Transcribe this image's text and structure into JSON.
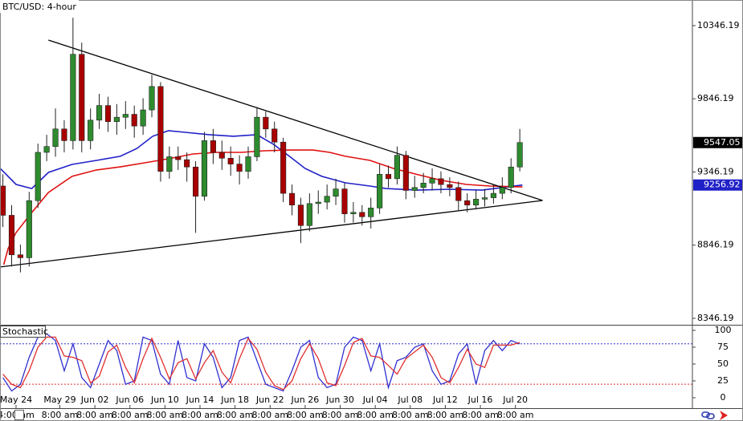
{
  "chart_data": [
    {
      "type": "candlestick",
      "title": "BTC/USD: 4-hour",
      "x": [
        -1.5,
        -0.5,
        0.5,
        1.5,
        2.5,
        3.5,
        4.5,
        5.5,
        6.5,
        7.5,
        8.5,
        9.5,
        10.5,
        11.5,
        12.5,
        13.5,
        14.5,
        15.5,
        16.5,
        17.5,
        18.5,
        19.5,
        20.5,
        21.5,
        22.5,
        23.5,
        24.5,
        25.5,
        26.5,
        27.5,
        28.5,
        29.5,
        30.5,
        31.5,
        32.5,
        33.5,
        34.5,
        35.5,
        36.5,
        37.5,
        38.5,
        39.5,
        40.5,
        41.5,
        42.5,
        43.5,
        44.5,
        45.5,
        46.5,
        47.5,
        48.5,
        49.5,
        50.5,
        51.5,
        52.5,
        53.5,
        54.5,
        55.5,
        56.5,
        57.5
      ],
      "open": [
        9250,
        9050,
        8780,
        8760,
        9150,
        9480,
        9520,
        9640,
        9560,
        10150,
        9560,
        9700,
        9800,
        9690,
        9720,
        9740,
        9660,
        9770,
        9930,
        9350,
        9450,
        9430,
        9380,
        9180,
        9560,
        9480,
        9440,
        9400,
        9350,
        9450,
        9720,
        9640,
        9550,
        9200,
        9120,
        8980,
        9130,
        9140,
        9180,
        9230,
        9060,
        9070,
        9040,
        9100,
        9330,
        9300,
        9460,
        9220,
        9240,
        9270,
        9300,
        9260,
        9240,
        9150,
        9120,
        9160,
        9170,
        9200,
        9240,
        9380
      ],
      "high": [
        9330,
        9120,
        8850,
        9210,
        9540,
        9600,
        9780,
        9700,
        10400,
        10230,
        9780,
        9880,
        9860,
        9810,
        9830,
        9800,
        9850,
        10010,
        9960,
        9520,
        9520,
        9480,
        9420,
        9620,
        9640,
        9560,
        9520,
        9460,
        9520,
        9790,
        9760,
        9690,
        9580,
        9260,
        9170,
        9200,
        9220,
        9260,
        9300,
        9270,
        9140,
        9120,
        9170,
        9400,
        9390,
        9520,
        9490,
        9320,
        9340,
        9370,
        9350,
        9310,
        9280,
        9200,
        9220,
        9230,
        9260,
        9310,
        9440,
        9640
      ],
      "low": [
        8970,
        8700,
        8660,
        8700,
        9100,
        9420,
        9450,
        9480,
        9500,
        9480,
        9500,
        9640,
        9620,
        9600,
        9640,
        9580,
        9600,
        9720,
        9280,
        9300,
        9360,
        9280,
        8930,
        9150,
        9400,
        9360,
        9320,
        9260,
        9300,
        9420,
        9580,
        9480,
        9140,
        9050,
        8860,
        8940,
        9060,
        9090,
        9120,
        9000,
        9000,
        8980,
        8960,
        9060,
        9240,
        9260,
        9160,
        9170,
        9200,
        9220,
        9200,
        9180,
        9080,
        9070,
        9090,
        9110,
        9130,
        9160,
        9200,
        9350
      ],
      "close": [
        9050,
        8780,
        8760,
        9150,
        9480,
        9520,
        9640,
        9560,
        10150,
        9560,
        9700,
        9800,
        9690,
        9720,
        9740,
        9660,
        9770,
        9930,
        9350,
        9450,
        9430,
        9380,
        9180,
        9560,
        9480,
        9440,
        9400,
        9350,
        9450,
        9720,
        9640,
        9550,
        9200,
        9120,
        8980,
        9130,
        9140,
        9180,
        9230,
        9060,
        9070,
        9040,
        9100,
        9330,
        9300,
        9460,
        9220,
        9240,
        9270,
        9300,
        9260,
        9240,
        9150,
        9120,
        9160,
        9170,
        9200,
        9240,
        9380,
        9547.05
      ],
      "up_color": "#2e8b2e",
      "down_color": "#a80000",
      "lines": [
        {
          "color": "#2020c8",
          "x": [
            -1.8,
            0,
            1.8,
            3.7,
            6.4,
            9.2,
            11.9,
            13.8,
            15.6,
            17.4,
            19.3,
            22,
            24.8,
            27.5,
            29.4,
            31.2,
            33,
            34.9,
            37.6,
            40.4,
            42.2,
            45.9,
            49.5,
            53.2,
            57.8
          ],
          "values": [
            9370,
            9261,
            9233,
            9343,
            9398,
            9425,
            9453,
            9507,
            9590,
            9628,
            9617,
            9601,
            9590,
            9601,
            9535,
            9453,
            9370,
            9316,
            9272,
            9250,
            9233,
            9222,
            9228,
            9222,
            9256.92
          ]
        },
        {
          "color": "#e01010",
          "x": [
            -1.4,
            -0.9,
            0,
            1.8,
            3.7,
            6.4,
            9.2,
            11.9,
            14.7,
            17.4,
            20.2,
            22.9,
            25.7,
            28.4,
            31.2,
            33.9,
            35.8,
            37.6,
            40.4,
            43.1,
            45.9,
            48.6,
            51.4,
            54.1,
            57.8
          ],
          "values": [
            8713,
            8823,
            8932,
            9069,
            9206,
            9316,
            9360,
            9381,
            9409,
            9436,
            9469,
            9480,
            9480,
            9491,
            9496,
            9496,
            9480,
            9453,
            9425,
            9370,
            9327,
            9288,
            9261,
            9250,
            9244
          ]
        }
      ],
      "trendlines": [
        {
          "color": "#000000",
          "x": [
            3.7,
            60.1
          ],
          "values": [
            10247,
            9151
          ]
        },
        {
          "color": "#000000",
          "x": [
            -1.8,
            60.1
          ],
          "values": [
            8697,
            9151
          ]
        }
      ],
      "xlim": [
        -1.83,
        77.2
      ],
      "xticks": [
        {
          "value": 0,
          "label": "May 24"
        },
        {
          "value": 5,
          "label": "May 29"
        },
        {
          "value": 9,
          "label": "Jun 02"
        },
        {
          "value": 13,
          "label": "Jun 06"
        },
        {
          "value": 17,
          "label": "Jun 10"
        },
        {
          "value": 21,
          "label": "Jun 14"
        },
        {
          "value": 25,
          "label": "Jun 18"
        },
        {
          "value": 29,
          "label": "Jun 22"
        },
        {
          "value": 33,
          "label": "Jun 26"
        },
        {
          "value": 37,
          "label": "Jun 30"
        },
        {
          "value": 41,
          "label": "Jul 04"
        },
        {
          "value": 45,
          "label": "Jul 08"
        },
        {
          "value": 49,
          "label": "Jul 12"
        },
        {
          "value": 53,
          "label": "Jul 16"
        },
        {
          "value": 57,
          "label": "Jul 20"
        }
      ],
      "time_labels": [
        "4:00 am",
        "8:00 am",
        "8:00 am",
        "8:00 am",
        "8:00 am",
        "8:00 am",
        "8:00 am",
        "8:00 am",
        "8:00 am",
        "8:00 am",
        "8:00 am",
        "8:00 am",
        "8:00 am",
        "8:00 am",
        "8:00 am"
      ],
      "ylim": [
        8302,
        10521
      ],
      "yticks": [
        8346.19,
        8846.19,
        9346.19,
        9846.19,
        10346.19
      ]
    },
    {
      "type": "line",
      "title": "Stochastic",
      "x": [
        -1.5,
        -0.5,
        0.5,
        1.5,
        2.5,
        3.5,
        4.5,
        5.5,
        6.5,
        7.5,
        8.5,
        9.5,
        10.5,
        11.5,
        12.5,
        13.5,
        14.5,
        15.5,
        16.5,
        17.5,
        18.5,
        19.5,
        20.5,
        21.5,
        22.5,
        23.5,
        24.5,
        25.5,
        26.5,
        27.5,
        28.5,
        29.5,
        30.5,
        31.5,
        32.5,
        33.5,
        34.5,
        35.5,
        36.5,
        37.5,
        38.5,
        39.5,
        40.5,
        41.5,
        42.5,
        43.5,
        44.5,
        45.5,
        46.5,
        47.5,
        48.5,
        49.5,
        50.5,
        51.5,
        52.5,
        53.5,
        54.5,
        55.5,
        56.5,
        57.5
      ],
      "series": [
        {
          "color": "#3030d0",
          "values": [
            30,
            10,
            20,
            60,
            90,
            95,
            85,
            40,
            80,
            30,
            15,
            50,
            85,
            70,
            20,
            25,
            90,
            85,
            35,
            20,
            85,
            30,
            25,
            80,
            60,
            15,
            30,
            85,
            90,
            55,
            20,
            15,
            10,
            40,
            75,
            85,
            30,
            15,
            20,
            75,
            90,
            85,
            40,
            80,
            15,
            55,
            60,
            75,
            80,
            40,
            20,
            25,
            65,
            80,
            20,
            70,
            85,
            70,
            85,
            80
          ]
        },
        {
          "color": "#e03030",
          "values": [
            35,
            20,
            15,
            40,
            75,
            90,
            90,
            62,
            60,
            55,
            22,
            32,
            68,
            78,
            45,
            22,
            58,
            88,
            60,
            28,
            52,
            58,
            28,
            52,
            70,
            38,
            22,
            58,
            88,
            72,
            38,
            18,
            12,
            25,
            58,
            80,
            58,
            22,
            18,
            48,
            82,
            88,
            62,
            60,
            48,
            35,
            58,
            68,
            78,
            60,
            30,
            22,
            45,
            72,
            50,
            45,
            78,
            78,
            78,
            82
          ]
        }
      ],
      "levels": [
        {
          "value": 80,
          "color": "#3030d0"
        },
        {
          "value": 20,
          "color": "#e03030"
        }
      ],
      "xlim": [
        -1.83,
        77.2
      ],
      "ylim": [
        -14.3,
        107.1
      ],
      "yticks": [
        0,
        25,
        50,
        75,
        100
      ]
    }
  ]
}
